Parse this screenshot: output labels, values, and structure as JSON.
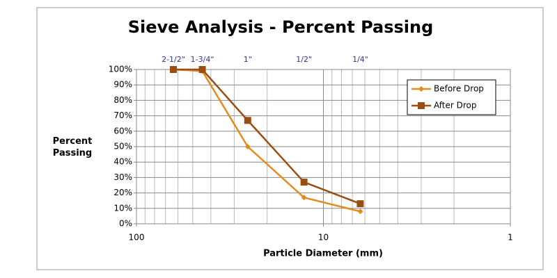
{
  "chart_data": {
    "type": "line",
    "title": "Sieve Analysis - Percent Passing",
    "xlabel": "Particle Diameter (mm)",
    "ylabel": "Percent Passing",
    "xscale": "log",
    "xlim": [
      100,
      1
    ],
    "xticks": [
      100,
      10,
      1
    ],
    "minor_xticks": [
      90,
      80,
      70,
      60,
      50,
      40,
      30,
      20,
      9,
      8,
      7,
      6,
      5,
      4,
      3,
      2
    ],
    "ylim": [
      0,
      100
    ],
    "yticks": [
      {
        "value": 0,
        "label": "0%"
      },
      {
        "value": 10,
        "label": "10%"
      },
      {
        "value": 20,
        "label": "20%"
      },
      {
        "value": 30,
        "label": "30%"
      },
      {
        "value": 40,
        "label": "40%"
      },
      {
        "value": 50,
        "label": "50%"
      },
      {
        "value": 60,
        "label": "60%"
      },
      {
        "value": 70,
        "label": "70%"
      },
      {
        "value": 80,
        "label": "80%"
      },
      {
        "value": 90,
        "label": "90%"
      },
      {
        "value": 100,
        "label": "100%"
      }
    ],
    "grid": true,
    "legend": "upper right",
    "x": [
      63.5,
      44.45,
      25.4,
      12.7,
      6.35
    ],
    "top_labels": [
      "2-1/2\"",
      "1-3/4\"",
      "1\"",
      "1/2\"",
      "1/4\""
    ],
    "series": [
      {
        "name": "Before Drop",
        "color": "#e38b1f",
        "marker": "diamond",
        "values": [
          100,
          99,
          50,
          17,
          8
        ]
      },
      {
        "name": "After Drop",
        "color": "#9a4f12",
        "marker": "square",
        "values": [
          100,
          100,
          67,
          27,
          13
        ]
      }
    ]
  }
}
